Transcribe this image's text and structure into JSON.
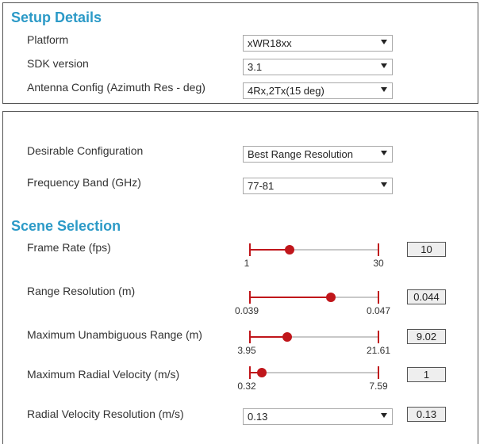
{
  "setup": {
    "title": "Setup Details",
    "platform": {
      "label": "Platform",
      "value": "xWR18xx"
    },
    "sdk": {
      "label": "SDK version",
      "value": "3.1"
    },
    "antenna": {
      "label": "Antenna Config (Azimuth Res - deg)",
      "value": "4Rx,2Tx(15 deg)"
    }
  },
  "config": {
    "desirable": {
      "label": "Desirable Configuration",
      "value": "Best Range Resolution"
    },
    "band": {
      "label": "Frequency Band (GHz)",
      "value": "77-81"
    }
  },
  "scene": {
    "title": "Scene Selection",
    "frame_rate": {
      "label": "Frame Rate (fps)",
      "min": "1",
      "max": "30",
      "value": "10",
      "level": 0.31
    },
    "range_res": {
      "label": "Range Resolution (m)",
      "min": "0.039",
      "max": "0.047",
      "value": "0.044",
      "level": 0.63
    },
    "max_range": {
      "label": "Maximum Unambiguous Range (m)",
      "min": "3.95",
      "max": "21.61",
      "value": "9.02",
      "level": 0.29
    },
    "max_vel": {
      "label": "Maximum Radial Velocity (m/s)",
      "min": "0.32",
      "max": "7.59",
      "value": "1",
      "level": 0.09
    },
    "vel_res": {
      "label": "Radial Velocity Resolution (m/s)",
      "value": "0.13",
      "box": "0.13"
    }
  },
  "colors": {
    "accent": "#2c9ac7",
    "slider": "#c0161b"
  }
}
